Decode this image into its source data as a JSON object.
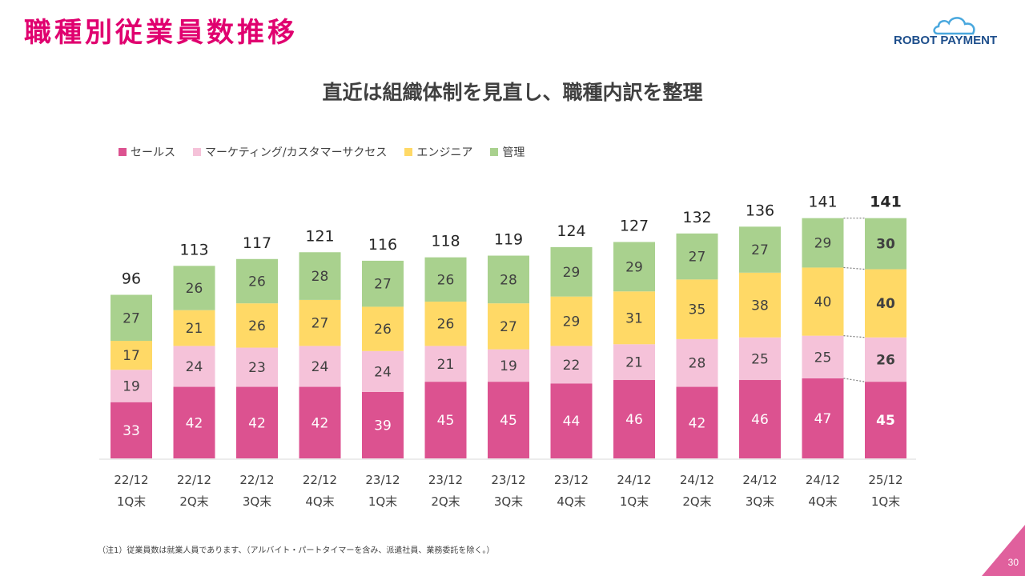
{
  "page": {
    "title": "職種別従業員数推移",
    "subtitle": "直近は組織体制を見直し、職種内訳を整理",
    "note": "（注1）従業員数は就業人員であります、（アルバイト・パートタイマーを含み、派遣社員、業務委託を除く。）",
    "page_number": "30",
    "logo_text": "ROBOT PAYMENT",
    "accent_color": "#e0006f"
  },
  "chart_data": {
    "type": "bar",
    "stacked": true,
    "categories": [
      [
        "22/12",
        "1Q末"
      ],
      [
        "22/12",
        "2Q末"
      ],
      [
        "22/12",
        "3Q末"
      ],
      [
        "22/12",
        "4Q末"
      ],
      [
        "23/12",
        "1Q末"
      ],
      [
        "23/12",
        "2Q末"
      ],
      [
        "23/12",
        "3Q末"
      ],
      [
        "23/12",
        "4Q末"
      ],
      [
        "24/12",
        "1Q末"
      ],
      [
        "24/12",
        "2Q末"
      ],
      [
        "24/12",
        "3Q末"
      ],
      [
        "24/12",
        "4Q末"
      ],
      [
        "25/12",
        "1Q末"
      ]
    ],
    "series": [
      {
        "name": "セールス",
        "color": "#dc5290",
        "values": [
          33,
          42,
          42,
          42,
          39,
          45,
          45,
          44,
          46,
          42,
          46,
          47,
          45
        ]
      },
      {
        "name": "マーケティング/カスタマーサクセス",
        "color": "#f5c2d9",
        "values": [
          19,
          24,
          23,
          24,
          24,
          21,
          19,
          22,
          21,
          28,
          25,
          25,
          26
        ]
      },
      {
        "name": "エンジニア",
        "color": "#ffd966",
        "values": [
          17,
          21,
          26,
          27,
          26,
          26,
          27,
          29,
          31,
          35,
          38,
          40,
          40
        ]
      },
      {
        "name": "管理",
        "color": "#a9d18e",
        "values": [
          27,
          26,
          26,
          28,
          27,
          26,
          28,
          29,
          29,
          27,
          27,
          29,
          30
        ]
      }
    ],
    "totals": [
      96,
      113,
      117,
      121,
      116,
      118,
      119,
      124,
      127,
      132,
      136,
      141,
      141
    ],
    "highlight_last": true,
    "legend_position": "top-left",
    "grid": false
  }
}
